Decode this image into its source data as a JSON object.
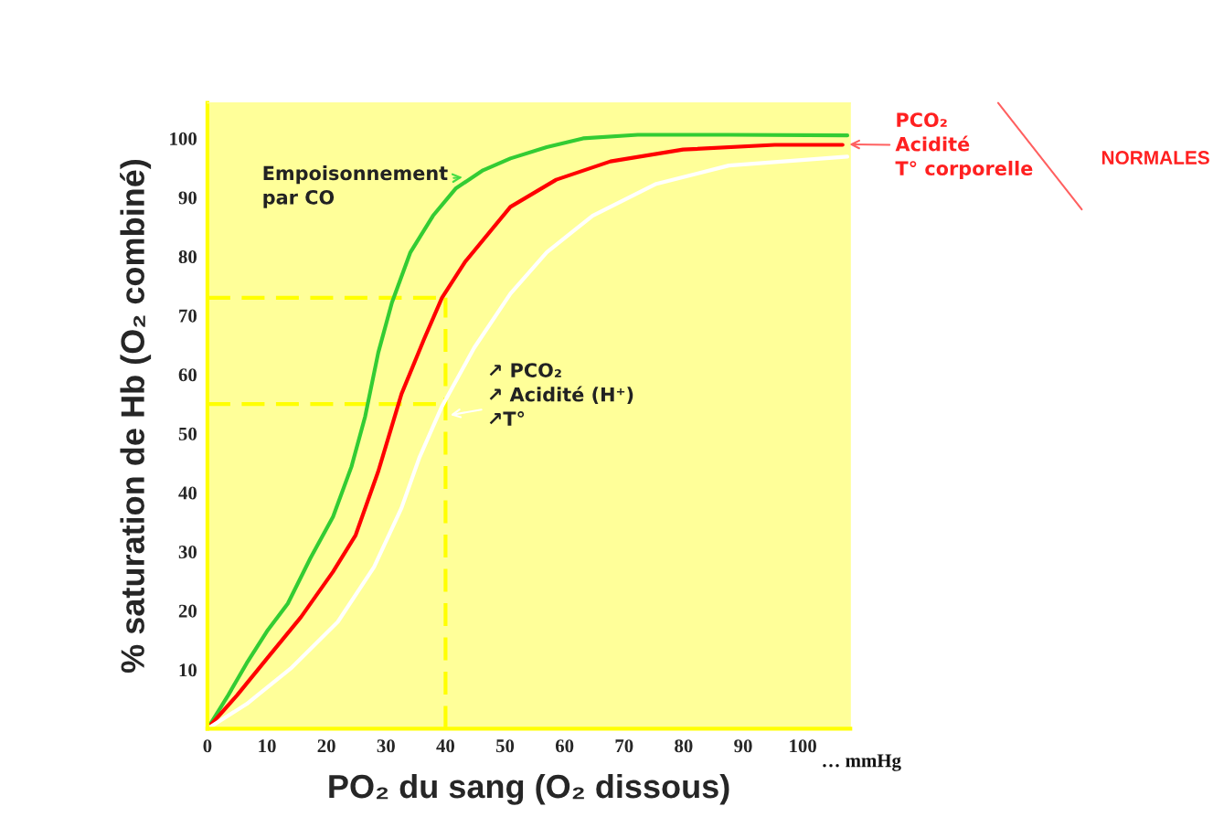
{
  "chart_data": {
    "type": "line",
    "xlabel": "PO₂ du sang (O₂ dissous)",
    "ylabel": "% saturation de Hb (O₂ combiné)",
    "xlim": [
      0,
      108
    ],
    "ylim": [
      0,
      106
    ],
    "xticks": [
      0,
      10,
      20,
      30,
      40,
      50,
      60,
      70,
      80,
      90,
      100
    ],
    "yticks": [
      10,
      20,
      30,
      40,
      50,
      60,
      70,
      80,
      90,
      100
    ],
    "grid": false,
    "legend": false,
    "marker": "none",
    "line_style": "solid",
    "series": [
      {
        "color": "#33cc33",
        "x": [
          0,
          3.5,
          6.6,
          10,
          13.5,
          17.3,
          21.1,
          24.2,
          26.5,
          28.7,
          31,
          34.1,
          37.9,
          41.7,
          46.3,
          50.9,
          57,
          63.1,
          72.3,
          87.6,
          107.5
        ],
        "values": [
          0,
          5.7,
          11.1,
          16.5,
          21.2,
          28.9,
          35.9,
          44.4,
          52.9,
          63.7,
          72.2,
          80.7,
          86.9,
          91.5,
          94.6,
          96.6,
          98.5,
          100,
          100.6,
          100.6,
          100.5
        ]
      },
      {
        "color": "#ff0000",
        "x": [
          0,
          5,
          10,
          15.7,
          21.1,
          24.9,
          28.7,
          32.6,
          36.4,
          39.4,
          43.3,
          50.9,
          58.6,
          67.7,
          79.9,
          95.3,
          106.7
        ],
        "values": [
          0,
          5.7,
          11.9,
          18.9,
          26.6,
          32.8,
          43.6,
          56.7,
          66,
          73,
          79.1,
          88.4,
          93,
          96.1,
          98.1,
          98.9,
          98.9
        ]
      },
      {
        "color": "#ffffff",
        "x": [
          0,
          6.6,
          14.2,
          21.9,
          28,
          32.6,
          35.6,
          39.4,
          44.8,
          50.9,
          57,
          64.7,
          75.4,
          87.6,
          107.5
        ],
        "values": [
          0,
          4.2,
          10.4,
          18.1,
          27.4,
          37.4,
          45.9,
          54.6,
          64.5,
          73.7,
          80.7,
          86.9,
          92.3,
          95.4,
          96.9
        ]
      }
    ],
    "ref_lines": [
      {
        "axis": "x",
        "value": 40,
        "color": "#ffff00",
        "line_style": "dashed"
      },
      {
        "axis": "y",
        "value": 73,
        "color": "#ffff00",
        "line_style": "dashed"
      },
      {
        "axis": "y",
        "value": 55,
        "color": "#ffff00",
        "line_style": "dashed"
      }
    ],
    "annotations": [
      {
        "text": "Empoisonnement\npar CO",
        "x": 43.7,
        "y": 93.5
      },
      {
        "text": "↗ PCO₂\n↗ Acidité (H⁺)\n↗T°",
        "x": 40,
        "y": 53
      },
      {
        "text": "PCO₂\nAcidité\nT° corporelle",
        "x": 107,
        "y": 99
      },
      "NORMALES",
      "… mmHg"
    ]
  }
}
